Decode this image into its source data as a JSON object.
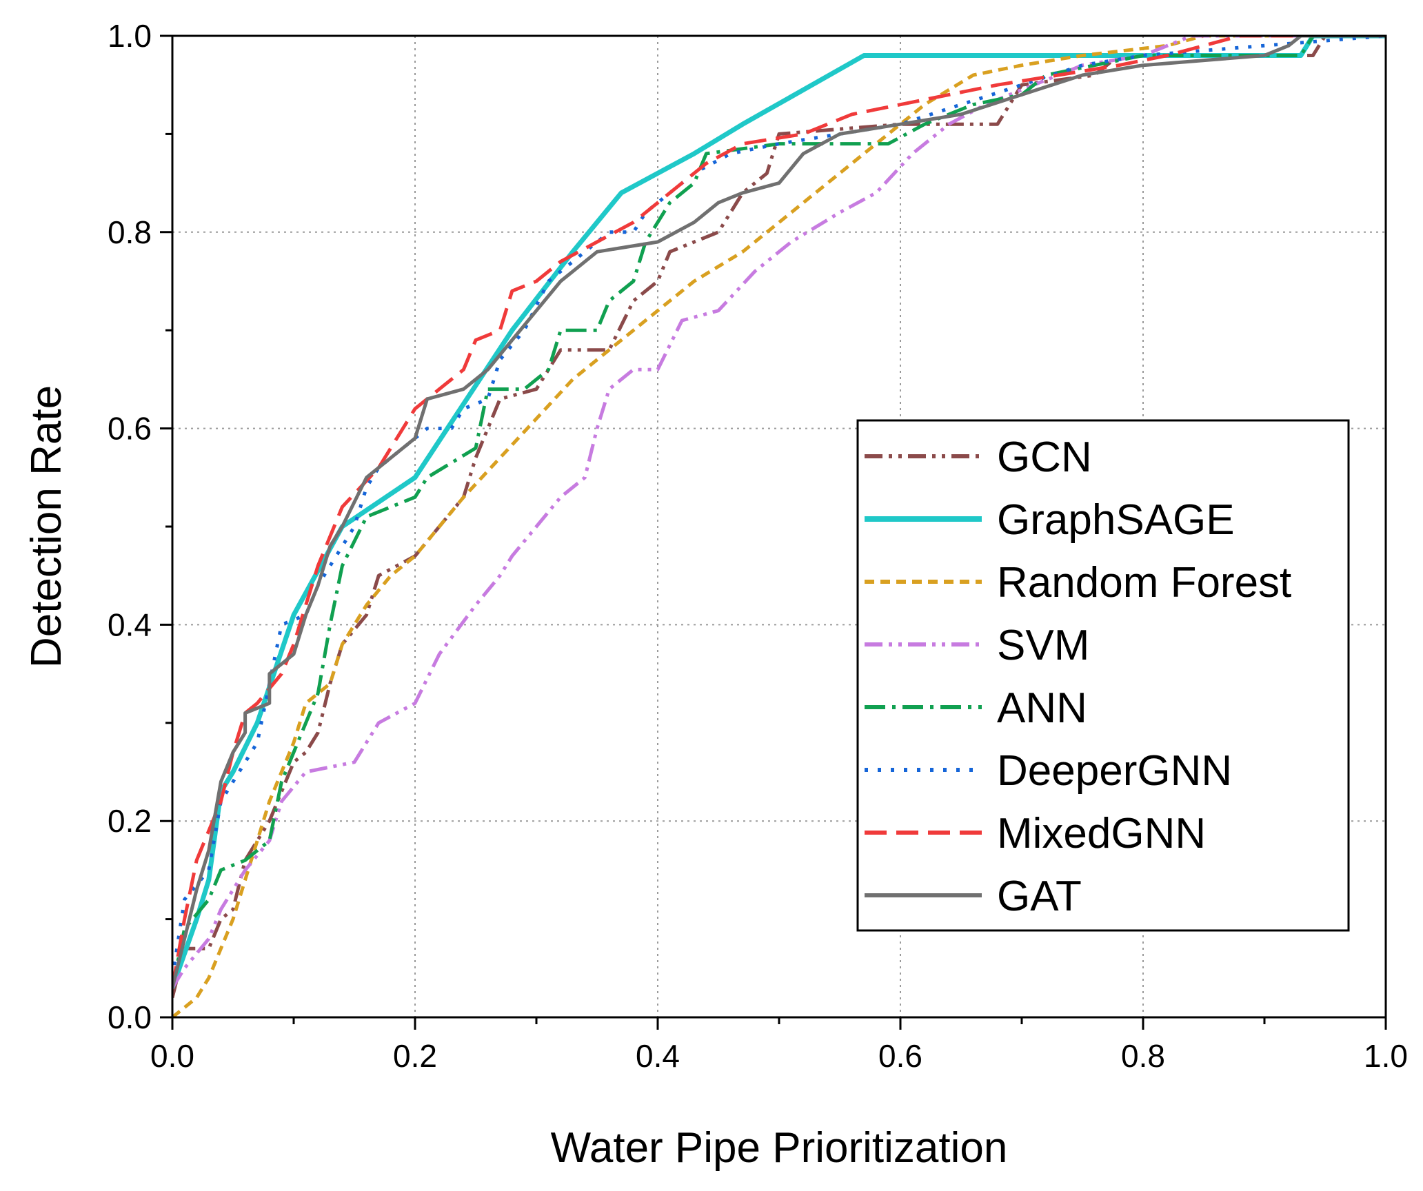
{
  "chart_data": {
    "type": "line",
    "title": "",
    "xlabel": "Water Pipe Prioritization",
    "ylabel": "Detection Rate",
    "xlim": [
      0,
      1
    ],
    "ylim": [
      0,
      1
    ],
    "x_ticks": [
      "0.0",
      "0.2",
      "0.4",
      "0.6",
      "0.8",
      "1.0"
    ],
    "y_ticks": [
      "0.0",
      "0.2",
      "0.4",
      "0.6",
      "0.8",
      "1.0"
    ],
    "grid": true,
    "legend_position": "right-center",
    "series": [
      {
        "name": "GCN",
        "color": "#8B4A4A",
        "dash": "dashdotdot",
        "width": 5,
        "points": [
          [
            0,
            0.02
          ],
          [
            0.01,
            0.07
          ],
          [
            0.03,
            0.07
          ],
          [
            0.04,
            0.1
          ],
          [
            0.05,
            0.11
          ],
          [
            0.06,
            0.16
          ],
          [
            0.07,
            0.18
          ],
          [
            0.08,
            0.2
          ],
          [
            0.09,
            0.23
          ],
          [
            0.1,
            0.26
          ],
          [
            0.11,
            0.27
          ],
          [
            0.12,
            0.29
          ],
          [
            0.13,
            0.34
          ],
          [
            0.14,
            0.38
          ],
          [
            0.16,
            0.41
          ],
          [
            0.17,
            0.45
          ],
          [
            0.2,
            0.47
          ],
          [
            0.22,
            0.5
          ],
          [
            0.24,
            0.53
          ],
          [
            0.25,
            0.57
          ],
          [
            0.27,
            0.63
          ],
          [
            0.3,
            0.64
          ],
          [
            0.32,
            0.68
          ],
          [
            0.36,
            0.68
          ],
          [
            0.38,
            0.73
          ],
          [
            0.4,
            0.75
          ],
          [
            0.41,
            0.78
          ],
          [
            0.45,
            0.8
          ],
          [
            0.47,
            0.84
          ],
          [
            0.49,
            0.86
          ],
          [
            0.5,
            0.9
          ],
          [
            0.6,
            0.91
          ],
          [
            0.68,
            0.91
          ],
          [
            0.7,
            0.95
          ],
          [
            0.76,
            0.96
          ],
          [
            0.78,
            0.98
          ],
          [
            0.94,
            0.98
          ],
          [
            0.95,
            1.0
          ],
          [
            1.0,
            1.0
          ]
        ]
      },
      {
        "name": "GraphSAGE",
        "color": "#1FC8C8",
        "dash": "solid",
        "width": 7,
        "points": [
          [
            0,
            0.03
          ],
          [
            0.02,
            0.1
          ],
          [
            0.03,
            0.14
          ],
          [
            0.04,
            0.23
          ],
          [
            0.05,
            0.25
          ],
          [
            0.07,
            0.3
          ],
          [
            0.1,
            0.41
          ],
          [
            0.14,
            0.5
          ],
          [
            0.2,
            0.55
          ],
          [
            0.28,
            0.7
          ],
          [
            0.33,
            0.78
          ],
          [
            0.37,
            0.84
          ],
          [
            0.43,
            0.88
          ],
          [
            0.47,
            0.91
          ],
          [
            0.57,
            0.98
          ],
          [
            0.93,
            0.98
          ],
          [
            0.94,
            1.0
          ],
          [
            1.0,
            1.0
          ]
        ]
      },
      {
        "name": "Random Forest",
        "color": "#D9A020",
        "dash": "shortdash",
        "width": 5,
        "points": [
          [
            0,
            0.0
          ],
          [
            0.01,
            0.01
          ],
          [
            0.02,
            0.02
          ],
          [
            0.03,
            0.04
          ],
          [
            0.04,
            0.07
          ],
          [
            0.05,
            0.1
          ],
          [
            0.06,
            0.14
          ],
          [
            0.07,
            0.18
          ],
          [
            0.08,
            0.22
          ],
          [
            0.09,
            0.25
          ],
          [
            0.1,
            0.28
          ],
          [
            0.11,
            0.32
          ],
          [
            0.13,
            0.34
          ],
          [
            0.14,
            0.38
          ],
          [
            0.16,
            0.42
          ],
          [
            0.18,
            0.45
          ],
          [
            0.2,
            0.47
          ],
          [
            0.22,
            0.5
          ],
          [
            0.24,
            0.53
          ],
          [
            0.27,
            0.57
          ],
          [
            0.3,
            0.61
          ],
          [
            0.33,
            0.65
          ],
          [
            0.36,
            0.68
          ],
          [
            0.4,
            0.72
          ],
          [
            0.43,
            0.75
          ],
          [
            0.47,
            0.78
          ],
          [
            0.5,
            0.81
          ],
          [
            0.53,
            0.84
          ],
          [
            0.56,
            0.87
          ],
          [
            0.59,
            0.9
          ],
          [
            0.62,
            0.93
          ],
          [
            0.66,
            0.96
          ],
          [
            0.7,
            0.97
          ],
          [
            0.75,
            0.98
          ],
          [
            0.82,
            0.99
          ],
          [
            0.85,
            1.0
          ],
          [
            1.0,
            1.0
          ]
        ]
      },
      {
        "name": "SVM",
        "color": "#C77BE0",
        "dash": "dashdotdot",
        "width": 5,
        "points": [
          [
            0,
            0.03
          ],
          [
            0.01,
            0.05
          ],
          [
            0.03,
            0.08
          ],
          [
            0.04,
            0.11
          ],
          [
            0.06,
            0.15
          ],
          [
            0.08,
            0.18
          ],
          [
            0.09,
            0.22
          ],
          [
            0.11,
            0.25
          ],
          [
            0.15,
            0.26
          ],
          [
            0.17,
            0.3
          ],
          [
            0.2,
            0.32
          ],
          [
            0.22,
            0.37
          ],
          [
            0.25,
            0.42
          ],
          [
            0.27,
            0.45
          ],
          [
            0.28,
            0.47
          ],
          [
            0.3,
            0.5
          ],
          [
            0.32,
            0.53
          ],
          [
            0.34,
            0.55
          ],
          [
            0.35,
            0.6
          ],
          [
            0.36,
            0.64
          ],
          [
            0.38,
            0.66
          ],
          [
            0.4,
            0.66
          ],
          [
            0.42,
            0.71
          ],
          [
            0.45,
            0.72
          ],
          [
            0.48,
            0.76
          ],
          [
            0.51,
            0.79
          ],
          [
            0.55,
            0.82
          ],
          [
            0.58,
            0.84
          ],
          [
            0.61,
            0.88
          ],
          [
            0.64,
            0.91
          ],
          [
            0.67,
            0.93
          ],
          [
            0.71,
            0.95
          ],
          [
            0.75,
            0.97
          ],
          [
            0.8,
            0.98
          ],
          [
            0.84,
            1.0
          ],
          [
            1.0,
            1.0
          ]
        ]
      },
      {
        "name": "ANN",
        "color": "#10A050",
        "dash": "dashdot",
        "width": 5,
        "points": [
          [
            0,
            0.03
          ],
          [
            0.01,
            0.09
          ],
          [
            0.03,
            0.12
          ],
          [
            0.04,
            0.15
          ],
          [
            0.06,
            0.16
          ],
          [
            0.08,
            0.18
          ],
          [
            0.09,
            0.24
          ],
          [
            0.1,
            0.27
          ],
          [
            0.11,
            0.3
          ],
          [
            0.12,
            0.33
          ],
          [
            0.13,
            0.4
          ],
          [
            0.14,
            0.46
          ],
          [
            0.16,
            0.51
          ],
          [
            0.18,
            0.52
          ],
          [
            0.2,
            0.53
          ],
          [
            0.21,
            0.55
          ],
          [
            0.25,
            0.58
          ],
          [
            0.26,
            0.64
          ],
          [
            0.29,
            0.64
          ],
          [
            0.31,
            0.66
          ],
          [
            0.32,
            0.7
          ],
          [
            0.35,
            0.7
          ],
          [
            0.36,
            0.73
          ],
          [
            0.38,
            0.75
          ],
          [
            0.39,
            0.79
          ],
          [
            0.41,
            0.83
          ],
          [
            0.43,
            0.85
          ],
          [
            0.44,
            0.88
          ],
          [
            0.5,
            0.89
          ],
          [
            0.59,
            0.89
          ],
          [
            0.62,
            0.91
          ],
          [
            0.66,
            0.93
          ],
          [
            0.7,
            0.94
          ],
          [
            0.72,
            0.96
          ],
          [
            0.76,
            0.97
          ],
          [
            0.8,
            0.98
          ],
          [
            0.93,
            0.98
          ],
          [
            0.94,
            1.0
          ],
          [
            1.0,
            1.0
          ]
        ]
      },
      {
        "name": "DeeperGNN",
        "color": "#1565D8",
        "dash": "dotted",
        "width": 5,
        "points": [
          [
            0,
            0.04
          ],
          [
            0.01,
            0.12
          ],
          [
            0.03,
            0.15
          ],
          [
            0.04,
            0.22
          ],
          [
            0.05,
            0.24
          ],
          [
            0.07,
            0.28
          ],
          [
            0.08,
            0.34
          ],
          [
            0.09,
            0.4
          ],
          [
            0.11,
            0.41
          ],
          [
            0.12,
            0.44
          ],
          [
            0.14,
            0.48
          ],
          [
            0.15,
            0.5
          ],
          [
            0.16,
            0.54
          ],
          [
            0.17,
            0.56
          ],
          [
            0.19,
            0.58
          ],
          [
            0.21,
            0.6
          ],
          [
            0.23,
            0.6
          ],
          [
            0.24,
            0.62
          ],
          [
            0.26,
            0.63
          ],
          [
            0.27,
            0.67
          ],
          [
            0.29,
            0.7
          ],
          [
            0.31,
            0.75
          ],
          [
            0.34,
            0.78
          ],
          [
            0.36,
            0.8
          ],
          [
            0.38,
            0.8
          ],
          [
            0.39,
            0.82
          ],
          [
            0.41,
            0.84
          ],
          [
            0.43,
            0.86
          ],
          [
            0.46,
            0.88
          ],
          [
            0.5,
            0.89
          ],
          [
            0.55,
            0.9
          ],
          [
            0.6,
            0.91
          ],
          [
            0.65,
            0.93
          ],
          [
            0.7,
            0.95
          ],
          [
            0.75,
            0.97
          ],
          [
            0.8,
            0.98
          ],
          [
            0.9,
            0.99
          ],
          [
            1.0,
            1.0
          ]
        ]
      },
      {
        "name": "MixedGNN",
        "color": "#F03A3A",
        "dash": "longdash",
        "width": 5,
        "points": [
          [
            0,
            0.03
          ],
          [
            0.01,
            0.1
          ],
          [
            0.02,
            0.16
          ],
          [
            0.03,
            0.19
          ],
          [
            0.04,
            0.22
          ],
          [
            0.05,
            0.27
          ],
          [
            0.06,
            0.31
          ],
          [
            0.07,
            0.32
          ],
          [
            0.09,
            0.35
          ],
          [
            0.1,
            0.38
          ],
          [
            0.11,
            0.42
          ],
          [
            0.12,
            0.46
          ],
          [
            0.14,
            0.52
          ],
          [
            0.17,
            0.56
          ],
          [
            0.18,
            0.58
          ],
          [
            0.2,
            0.62
          ],
          [
            0.22,
            0.64
          ],
          [
            0.24,
            0.66
          ],
          [
            0.25,
            0.69
          ],
          [
            0.27,
            0.7
          ],
          [
            0.28,
            0.74
          ],
          [
            0.3,
            0.75
          ],
          [
            0.32,
            0.77
          ],
          [
            0.35,
            0.79
          ],
          [
            0.38,
            0.81
          ],
          [
            0.41,
            0.84
          ],
          [
            0.44,
            0.87
          ],
          [
            0.47,
            0.89
          ],
          [
            0.52,
            0.9
          ],
          [
            0.56,
            0.92
          ],
          [
            0.6,
            0.93
          ],
          [
            0.64,
            0.94
          ],
          [
            0.68,
            0.95
          ],
          [
            0.73,
            0.96
          ],
          [
            0.78,
            0.97
          ],
          [
            0.82,
            0.98
          ],
          [
            0.88,
            1.0
          ],
          [
            1.0,
            1.0
          ]
        ]
      },
      {
        "name": "GAT",
        "color": "#707070",
        "dash": "solid",
        "width": 5,
        "points": [
          [
            0,
            0.03
          ],
          [
            0.01,
            0.08
          ],
          [
            0.02,
            0.13
          ],
          [
            0.03,
            0.17
          ],
          [
            0.04,
            0.24
          ],
          [
            0.05,
            0.27
          ],
          [
            0.06,
            0.29
          ],
          [
            0.06,
            0.31
          ],
          [
            0.08,
            0.32
          ],
          [
            0.08,
            0.35
          ],
          [
            0.1,
            0.37
          ],
          [
            0.11,
            0.41
          ],
          [
            0.12,
            0.44
          ],
          [
            0.13,
            0.48
          ],
          [
            0.14,
            0.5
          ],
          [
            0.16,
            0.55
          ],
          [
            0.18,
            0.57
          ],
          [
            0.2,
            0.59
          ],
          [
            0.21,
            0.63
          ],
          [
            0.24,
            0.64
          ],
          [
            0.26,
            0.66
          ],
          [
            0.28,
            0.69
          ],
          [
            0.3,
            0.72
          ],
          [
            0.32,
            0.75
          ],
          [
            0.33,
            0.76
          ],
          [
            0.35,
            0.78
          ],
          [
            0.4,
            0.79
          ],
          [
            0.43,
            0.81
          ],
          [
            0.45,
            0.83
          ],
          [
            0.47,
            0.84
          ],
          [
            0.5,
            0.85
          ],
          [
            0.52,
            0.88
          ],
          [
            0.55,
            0.9
          ],
          [
            0.6,
            0.91
          ],
          [
            0.65,
            0.92
          ],
          [
            0.7,
            0.94
          ],
          [
            0.75,
            0.96
          ],
          [
            0.8,
            0.97
          ],
          [
            0.9,
            0.98
          ],
          [
            0.92,
            0.99
          ],
          [
            0.93,
            1.0
          ],
          [
            1.0,
            1.0
          ]
        ]
      }
    ]
  }
}
